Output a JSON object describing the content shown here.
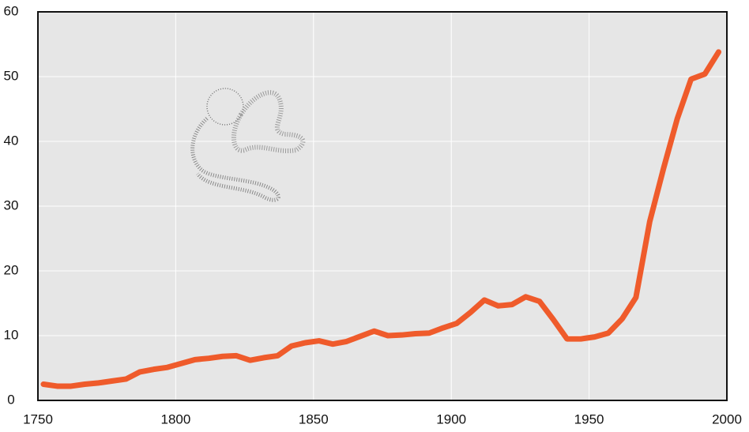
{
  "chart_data": {
    "type": "line",
    "x": [
      1752,
      1757,
      1762,
      1767,
      1772,
      1777,
      1782,
      1787,
      1792,
      1797,
      1802,
      1807,
      1812,
      1817,
      1822,
      1827,
      1832,
      1837,
      1842,
      1847,
      1852,
      1857,
      1862,
      1867,
      1872,
      1877,
      1882,
      1887,
      1892,
      1897,
      1902,
      1907,
      1912,
      1917,
      1922,
      1927,
      1932,
      1937,
      1942,
      1947,
      1952,
      1957,
      1962,
      1967,
      1972,
      1977,
      1982,
      1987,
      1992,
      1997
    ],
    "series": [
      {
        "color": "#ef5b2b",
        "values": [
          2.5,
          2.2,
          2.2,
          2.5,
          2.7,
          3.0,
          3.3,
          4.4,
          4.8,
          5.1,
          5.7,
          6.3,
          6.5,
          6.8,
          6.9,
          6.2,
          6.6,
          6.9,
          8.4,
          8.9,
          9.2,
          8.7,
          9.1,
          9.9,
          10.7,
          10.0,
          10.1,
          10.3,
          10.4,
          11.2,
          11.9,
          13.6,
          15.5,
          14.6,
          14.8,
          16.0,
          15.3,
          12.5,
          9.5,
          9.5,
          9.8,
          10.4,
          12.6,
          15.9,
          27.6,
          35.8,
          43.5,
          49.6,
          50.4,
          53.8
        ]
      }
    ],
    "xlim": [
      1750,
      2000
    ],
    "xticks": [
      1750,
      1800,
      1850,
      1900,
      1950,
      2000
    ],
    "ylim": [
      0,
      60
    ],
    "yticks": [
      0,
      10,
      20,
      30,
      40,
      50,
      60
    ],
    "grid": true
  }
}
